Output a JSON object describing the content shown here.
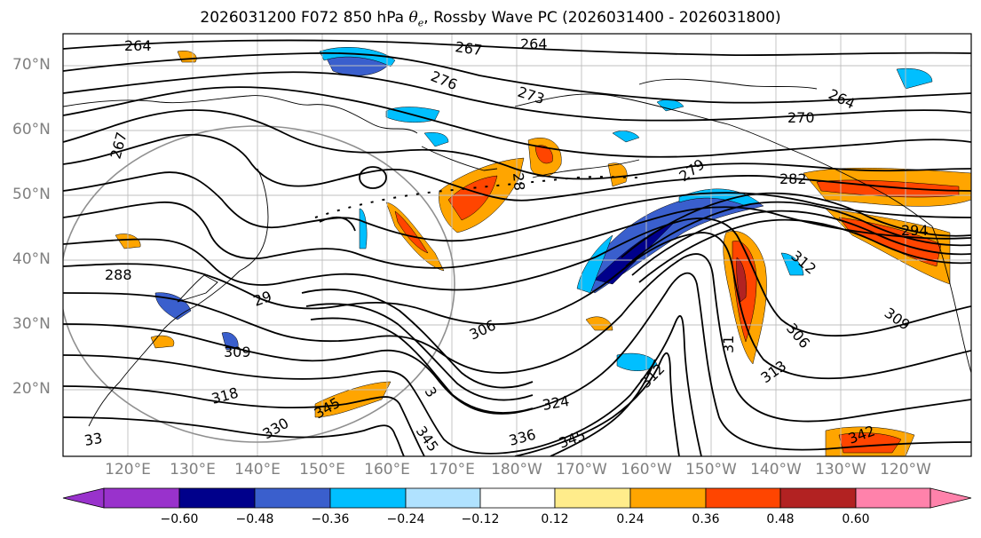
{
  "title": {
    "prefix": "2026031200 F072 850 hPa ",
    "theta": "θ",
    "sub": "e",
    "suffix": ", Rossby Wave PC (2026031400 - 2026031800)"
  },
  "map": {
    "lat_labels": [
      "70°N",
      "60°N",
      "50°N",
      "40°N",
      "30°N",
      "20°N"
    ],
    "lon_labels": [
      "120°E",
      "130°E",
      "140°E",
      "150°E",
      "160°E",
      "170°E",
      "180°W",
      "170°W",
      "160°W",
      "150°W",
      "140°W",
      "130°W",
      "120°W"
    ],
    "contour_labels": [
      "264",
      "267",
      "264",
      "276",
      "273",
      "264",
      "270",
      "267",
      "282",
      "279",
      "28",
      "294",
      "288",
      "29",
      "309",
      "306",
      "312",
      "306",
      "309",
      "318",
      "324",
      "312",
      "313",
      "31",
      "330",
      "345",
      "336",
      "345",
      "342",
      "33",
      "3",
      "345"
    ]
  },
  "colorbar": {
    "ticks": [
      "−0.60",
      "−0.48",
      "−0.36",
      "−0.24",
      "−0.12",
      "0.12",
      "0.24",
      "0.36",
      "0.48",
      "0.60"
    ],
    "colors": [
      "#9932cc",
      "#00008b",
      "#3a5fcd",
      "#00bfff",
      "#b0e2ff",
      "#ffffff",
      "#ffec8b",
      "#ffa500",
      "#ff4500",
      "#b22222",
      "#ff82ab"
    ]
  }
}
